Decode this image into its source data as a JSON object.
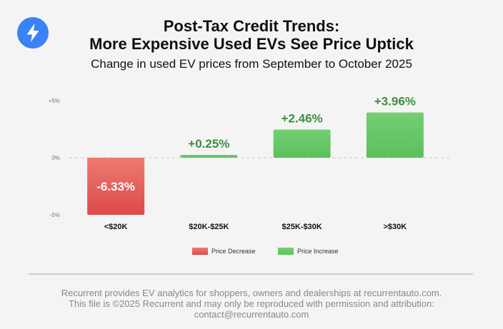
{
  "header": {
    "title_line1": "Post-Tax Credit Trends:",
    "title_line2": "More Expensive Used EVs See Price Uptick",
    "subtitle": "Change in used EV prices from September to October 2025"
  },
  "logo": {
    "icon": "lightning-bolt-icon",
    "color": "#3b82f6"
  },
  "chart_data": {
    "type": "bar",
    "title": "Post-Tax Credit Trends: More Expensive Used EVs See Price Uptick",
    "subtitle": "Change in used EV prices from September to October 2025",
    "categories": [
      "<$20K",
      "$20K-$25K",
      "$25K-$30K",
      ">$30K"
    ],
    "values": [
      -6.33,
      0.25,
      2.46,
      3.96
    ],
    "data_labels": [
      "-6.33%",
      "+0.25%",
      "+2.46%",
      "+3.96%"
    ],
    "ylim": [
      -5,
      5
    ],
    "yticks": [
      5,
      0,
      -5
    ],
    "ytick_labels": [
      "+5%",
      "0%",
      "-5%"
    ],
    "xlabel": "",
    "ylabel": "",
    "grid": "dashed zero line",
    "legend": [
      {
        "label": "Price Decrease",
        "color": "#dc4a4a"
      },
      {
        "label": "Price Increase",
        "color": "#5cc05c"
      }
    ],
    "legend_position": "bottom-center",
    "colors": {
      "decrease": "#dc4a4a",
      "increase": "#5cc05c",
      "increase_label": "#3e8e3e",
      "decrease_label": "#ffffff"
    }
  },
  "footer": {
    "line1": "Recurrent provides EV analytics for shoppers, owners and dealerships at recurrentauto.com.",
    "line2": "This file is ©2025 Recurrent and may only be reproduced with permission and attribution:",
    "line3": "contact@recurrentauto.com"
  }
}
